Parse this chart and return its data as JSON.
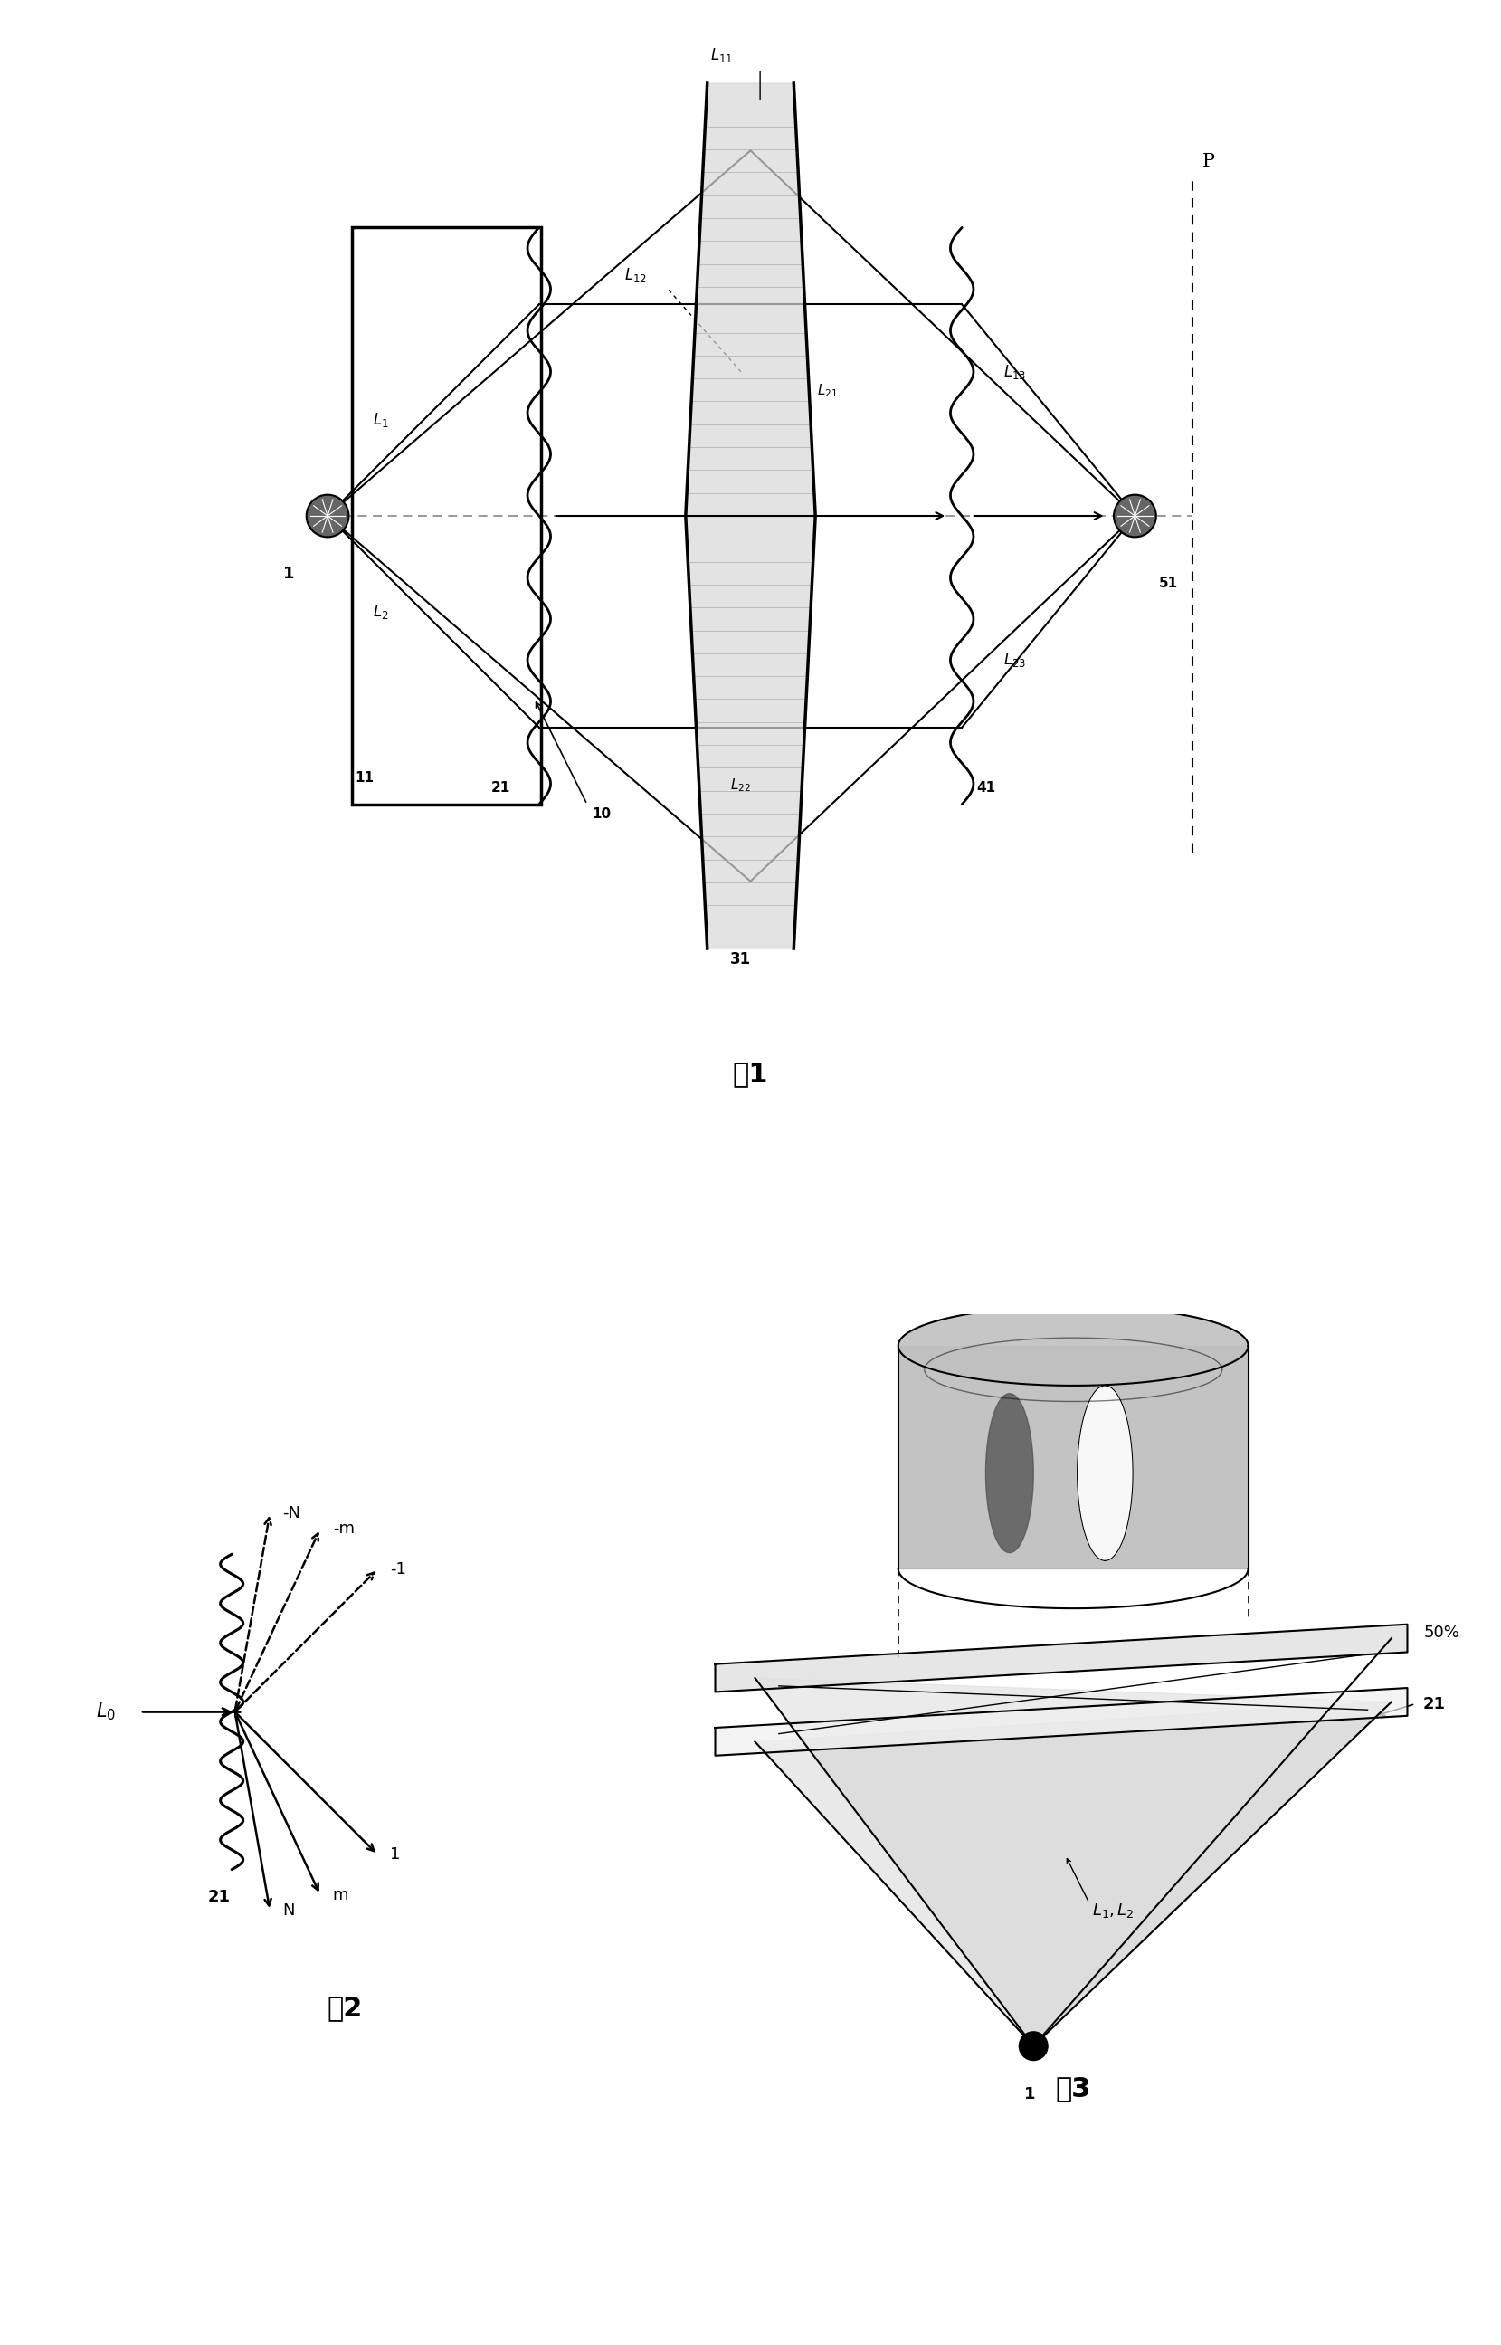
{
  "fig_width": 16.59,
  "fig_height": 25.91,
  "bg_color": "#ffffff",
  "fig1_title": "图1",
  "fig2_title": "图2",
  "fig3_title": "图3"
}
